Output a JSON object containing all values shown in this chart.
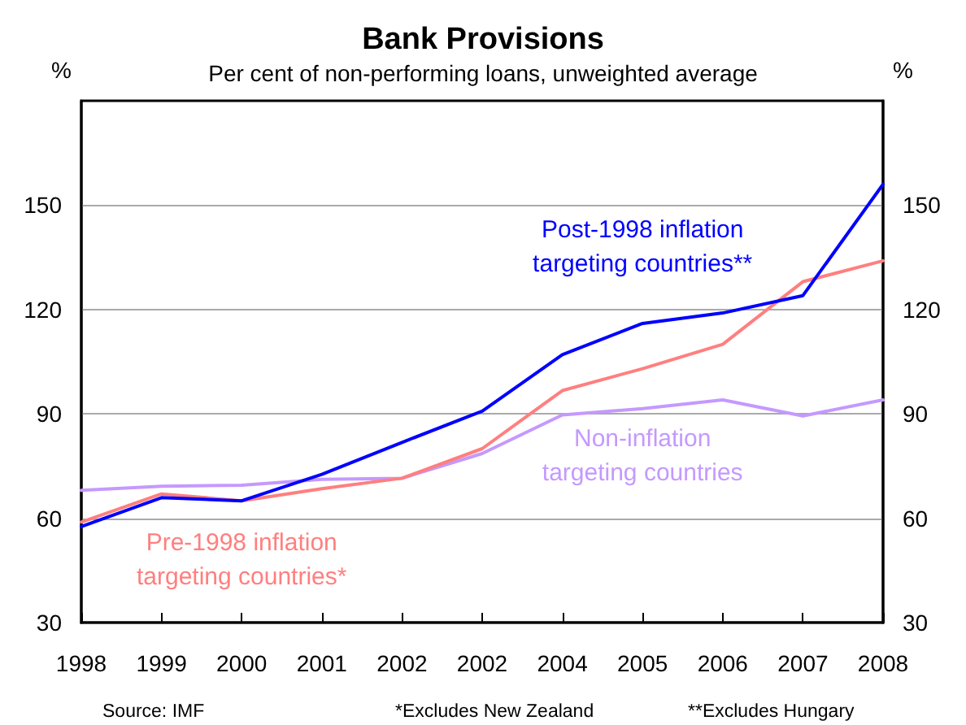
{
  "chart_data": {
    "type": "line",
    "title": "Bank Provisions",
    "subtitle": "Per cent of non-performing loans, unweighted average",
    "ylabel": "%",
    "y2label": "%",
    "categories": [
      "1998",
      "1999",
      "2000",
      "2001",
      "2002",
      "2002",
      "2004",
      "2005",
      "2006",
      "2007",
      "2008"
    ],
    "series": [
      {
        "name": "Post-1998 inflation targeting countries**",
        "color": "#0000ff",
        "values": [
          57.6,
          65.9,
          65,
          72.6,
          81.8,
          90.8,
          107,
          116,
          119,
          124,
          156
        ]
      },
      {
        "name": "Pre-1998 inflation targeting countries*",
        "color": "#ff7f7f",
        "values": [
          58.9,
          67,
          65,
          68.5,
          71.5,
          80,
          96.7,
          103,
          110,
          128,
          134
        ]
      },
      {
        "name": "Non-inflation targeting countries",
        "color": "#c499ff",
        "values": [
          68,
          69.2,
          69.5,
          71.2,
          71.5,
          78.6,
          89.7,
          91.5,
          94,
          89.4,
          94
        ]
      }
    ],
    "ylim": [
      30,
      180
    ],
    "yticks": [
      30,
      60,
      90,
      120,
      150
    ],
    "y2lim": [
      30,
      180
    ],
    "y2ticks": [
      30,
      60,
      90,
      120,
      150
    ],
    "grid": "y",
    "legend": false,
    "marker": "none",
    "line_style": "solid",
    "annotations": [
      "Source: IMF",
      "*Excludes New Zealand",
      "**Excludes Hungary"
    ]
  }
}
